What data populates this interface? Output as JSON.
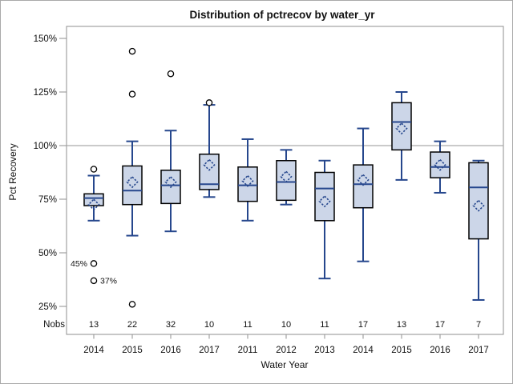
{
  "chart_data": {
    "type": "boxplot",
    "title": "Distribution of pctrecov by water_yr",
    "xlabel": "Water Year",
    "ylabel": "Pct Recovery",
    "nobs_label": "Nobs",
    "ylim": [
      12,
      156
    ],
    "yticks": [
      {
        "value": 150,
        "label": "150%"
      },
      {
        "value": 125,
        "label": "125%"
      },
      {
        "value": 100,
        "label": "100%"
      },
      {
        "value": 75,
        "label": "75%"
      },
      {
        "value": 50,
        "label": "50%"
      },
      {
        "value": 25,
        "label": "25%"
      }
    ],
    "reference_line_value": 100,
    "grid": "off",
    "legend": "none",
    "categories": [
      "2014",
      "2015",
      "2016",
      "2017",
      "2011",
      "2012",
      "2013",
      "2014",
      "2015",
      "2016",
      "2017"
    ],
    "nobs": [
      13,
      22,
      32,
      10,
      11,
      10,
      11,
      17,
      13,
      17,
      7
    ],
    "series": [
      {
        "category": "2014",
        "low": 65,
        "q1": 72,
        "median": 75.5,
        "q3": 77.5,
        "high": 86,
        "mean": 72.5,
        "outliers": [
          {
            "value": 89
          },
          {
            "value": 45,
            "label": "45%",
            "label_side": "left"
          },
          {
            "value": 37,
            "label": "37%",
            "label_side": "right"
          }
        ]
      },
      {
        "category": "2015",
        "low": 58,
        "q1": 72.5,
        "median": 79,
        "q3": 90.5,
        "high": 102,
        "mean": 83,
        "outliers": [
          {
            "value": 144
          },
          {
            "value": 124
          },
          {
            "value": 26
          }
        ]
      },
      {
        "category": "2016",
        "low": 60,
        "q1": 73,
        "median": 81.5,
        "q3": 88.5,
        "high": 107,
        "mean": 83,
        "outliers": [
          {
            "value": 133.5
          }
        ]
      },
      {
        "category": "2017",
        "low": 76,
        "q1": 79.5,
        "median": 82,
        "q3": 96,
        "high": 119,
        "mean": 91,
        "outliers": [
          {
            "value": 120
          }
        ]
      },
      {
        "category": "2011",
        "low": 65,
        "q1": 74,
        "median": 81.5,
        "q3": 90,
        "high": 103,
        "mean": 83.5,
        "outliers": []
      },
      {
        "category": "2012",
        "low": 72.5,
        "q1": 74.5,
        "median": 83,
        "q3": 93,
        "high": 98,
        "mean": 85.5,
        "outliers": []
      },
      {
        "category": "2013",
        "low": 38,
        "q1": 65,
        "median": 80,
        "q3": 87.5,
        "high": 93,
        "mean": 74,
        "outliers": []
      },
      {
        "category": "2014",
        "low": 46,
        "q1": 71,
        "median": 82,
        "q3": 91,
        "high": 108,
        "mean": 84,
        "outliers": []
      },
      {
        "category": "2015",
        "low": 84,
        "q1": 98,
        "median": 111,
        "q3": 120,
        "high": 125,
        "mean": 108,
        "outliers": []
      },
      {
        "category": "2016",
        "low": 78,
        "q1": 85,
        "median": 90,
        "q3": 97,
        "high": 102,
        "mean": 91,
        "outliers": []
      },
      {
        "category": "2017",
        "low": 28,
        "q1": 56.5,
        "median": 80.5,
        "q3": 92,
        "high": 93,
        "mean": 72,
        "outliers": []
      }
    ],
    "colors": {
      "box_fill": "#ccd6e8",
      "box_border": "#000000",
      "whisker": "#26478d",
      "median": "#26478d",
      "mean_marker": "#26478d",
      "outlier": "#000000",
      "reference_line": "#ababab",
      "frame": "#8f8f8f",
      "outer_border": "#a9a9a9",
      "background": "#ffffff"
    }
  }
}
